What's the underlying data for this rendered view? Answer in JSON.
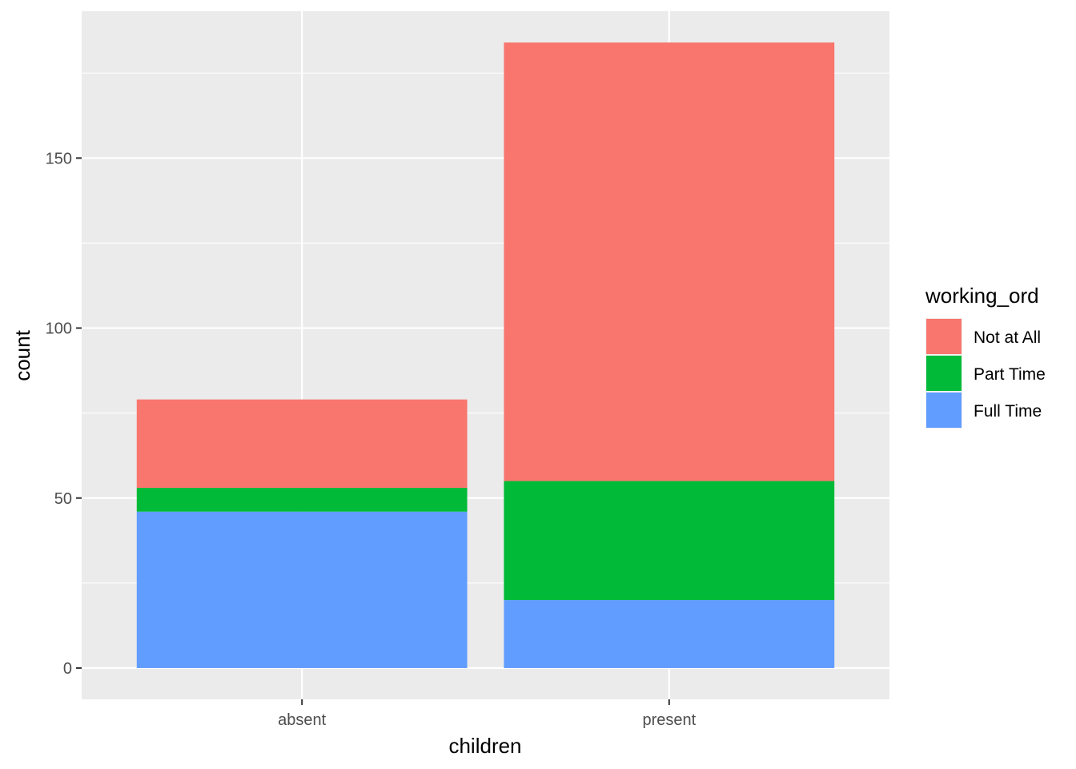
{
  "chart_data": {
    "type": "bar",
    "stacked": true,
    "categories": [
      "absent",
      "present"
    ],
    "series": [
      {
        "name": "Full Time",
        "color": "#619CFF",
        "values": [
          46,
          20
        ]
      },
      {
        "name": "Part Time",
        "color": "#00BA38",
        "values": [
          7,
          35
        ]
      },
      {
        "name": "Not at All",
        "color": "#F8766D",
        "values": [
          26,
          129
        ]
      }
    ],
    "xlabel": "children",
    "ylabel": "count",
    "ylim": [
      -9.2,
      193.2
    ],
    "yticks": [
      0,
      50,
      100,
      150
    ],
    "ytick_labels": [
      "0",
      "50",
      "100",
      "150"
    ],
    "grid": true,
    "background": "#EBEBEB",
    "legend": {
      "title": "working_ord",
      "position": "right",
      "entries": [
        {
          "label": "Not at All",
          "color": "#F8766D"
        },
        {
          "label": "Part Time",
          "color": "#00BA38"
        },
        {
          "label": "Full Time",
          "color": "#619CFF"
        }
      ]
    }
  }
}
